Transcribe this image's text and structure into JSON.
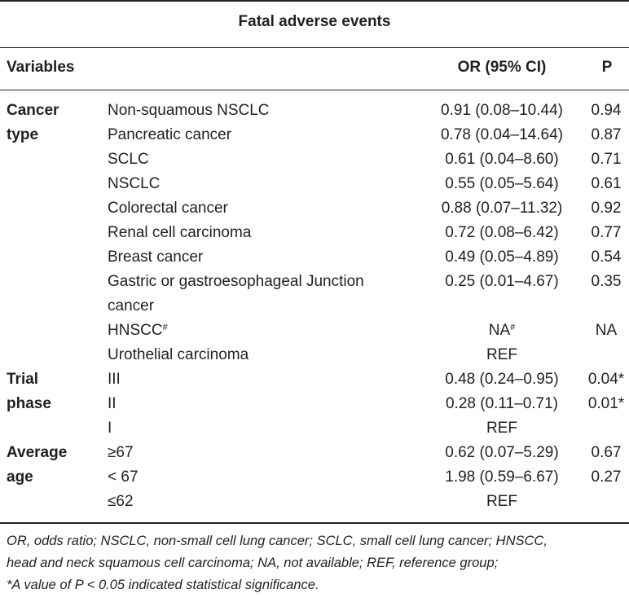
{
  "table": {
    "title": "Fatal adverse events",
    "headers": {
      "variables": "Variables",
      "or": "OR (95% CI)",
      "p": "P"
    },
    "groups": [
      {
        "label_line1": "Cancer",
        "label_line2": "type",
        "rows": [
          {
            "variable": "Non-squamous NSCLC",
            "or": "0.91 (0.08–10.44)",
            "p": "0.94"
          },
          {
            "variable": "Pancreatic cancer",
            "or": "0.78 (0.04–14.64)",
            "p": "0.87"
          },
          {
            "variable": "SCLC",
            "or": "0.61 (0.04–8.60)",
            "p": "0.71"
          },
          {
            "variable": "NSCLC",
            "or": "0.55 (0.05–5.64)",
            "p": "0.61"
          },
          {
            "variable": "Colorectal cancer",
            "or": "0.88 (0.07–11.32)",
            "p": "0.92"
          },
          {
            "variable": "Renal cell carcinoma",
            "or": "0.72 (0.08–6.42)",
            "p": "0.77"
          },
          {
            "variable": "Breast cancer",
            "or": "0.49 (0.05–4.89)",
            "p": "0.54"
          },
          {
            "variable": "Gastric or gastroesophageal Junction cancer",
            "or": "0.25 (0.01–4.67)",
            "p": "0.35"
          },
          {
            "variable": "HNSCC",
            "variable_sup": "#",
            "or": "NA",
            "or_sup": "#",
            "p": "NA"
          },
          {
            "variable": "Urothelial carcinoma",
            "or": "REF",
            "p": ""
          }
        ]
      },
      {
        "label_line1": "Trial",
        "label_line2": "phase",
        "rows": [
          {
            "variable": "III",
            "or": "0.48 (0.24–0.95)",
            "p": "0.04*"
          },
          {
            "variable": "II",
            "or": "0.28 (0.11–0.71)",
            "p": "0.01*"
          },
          {
            "variable": "I",
            "or": "REF",
            "p": ""
          }
        ]
      },
      {
        "label_line1": "Average",
        "label_line2": "age",
        "rows": [
          {
            "variable": "≥67",
            "or": "0.62 (0.07–5.29)",
            "p": "0.67"
          },
          {
            "variable": "< 67",
            "or": "1.98 (0.59–6.67)",
            "p": "0.27"
          },
          {
            "variable": "≤62",
            "or": "REF",
            "p": ""
          }
        ]
      }
    ],
    "footnotes": [
      "OR, odds ratio; NSCLC, non-small cell lung cancer; SCLC, small cell lung cancer; HNSCC,",
      "head and neck squamous cell carcinoma; NA, not available; REF, reference group;",
      "*A value of P < 0.05 indicated statistical significance."
    ]
  }
}
